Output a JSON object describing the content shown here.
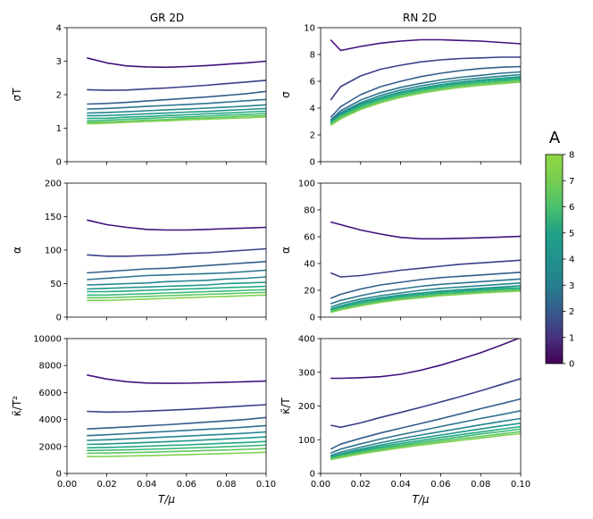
{
  "chart_data": {
    "type": "line",
    "columns": [
      {
        "title": "GR 2D"
      },
      {
        "title": "RN 2D"
      }
    ],
    "shared_x": {
      "label": "T/μ",
      "xlim": [
        0.0,
        0.1
      ],
      "ticks": [
        "0.00",
        "0.02",
        "0.04",
        "0.06",
        "0.08",
        "0.10"
      ]
    },
    "colorbar": {
      "label": "A",
      "colormap": "viridis",
      "range": [
        0,
        8
      ],
      "ticks": [
        "0",
        "1",
        "2",
        "3",
        "4",
        "5",
        "6",
        "7",
        "8"
      ]
    },
    "series_colors": [
      "#43107e",
      "#3b3e88",
      "#345d8c",
      "#2d728e",
      "#25858e",
      "#1f968b",
      "#23a884",
      "#3bb878",
      "#5ec762",
      "#80d150"
    ],
    "panels": [
      {
        "id": "gr-sigmaT",
        "column": 0,
        "row": 0,
        "ylabel": "σT",
        "ylim": [
          0,
          4
        ],
        "yticks": [
          "0",
          "1",
          "2",
          "3",
          "4"
        ],
        "x": [
          0.01,
          0.02,
          0.03,
          0.04,
          0.05,
          0.06,
          0.07,
          0.08,
          0.09,
          0.1
        ],
        "series": [
          {
            "values": [
              3.1,
              2.95,
              2.86,
              2.83,
              2.82,
              2.84,
              2.87,
              2.91,
              2.95,
              3.0
            ]
          },
          {
            "values": [
              2.15,
              2.13,
              2.14,
              2.17,
              2.2,
              2.24,
              2.28,
              2.33,
              2.38,
              2.43
            ]
          },
          {
            "values": [
              1.72,
              1.74,
              1.77,
              1.81,
              1.85,
              1.89,
              1.93,
              1.98,
              2.03,
              2.1
            ]
          },
          {
            "values": [
              1.57,
              1.59,
              1.62,
              1.65,
              1.68,
              1.71,
              1.74,
              1.78,
              1.82,
              1.86
            ]
          },
          {
            "values": [
              1.45,
              1.47,
              1.49,
              1.52,
              1.55,
              1.57,
              1.6,
              1.63,
              1.66,
              1.7
            ]
          },
          {
            "values": [
              1.37,
              1.38,
              1.4,
              1.43,
              1.45,
              1.48,
              1.5,
              1.53,
              1.56,
              1.59
            ]
          },
          {
            "values": [
              1.29,
              1.3,
              1.33,
              1.35,
              1.38,
              1.4,
              1.43,
              1.45,
              1.48,
              1.51
            ]
          },
          {
            "values": [
              1.22,
              1.24,
              1.27,
              1.29,
              1.32,
              1.34,
              1.36,
              1.39,
              1.41,
              1.44
            ]
          },
          {
            "values": [
              1.17,
              1.19,
              1.21,
              1.24,
              1.26,
              1.29,
              1.31,
              1.33,
              1.36,
              1.38
            ]
          },
          {
            "values": [
              1.13,
              1.15,
              1.18,
              1.2,
              1.22,
              1.25,
              1.27,
              1.29,
              1.31,
              1.34
            ]
          }
        ]
      },
      {
        "id": "rn-sigma",
        "column": 1,
        "row": 0,
        "ylabel": "σ",
        "ylim": [
          0,
          10
        ],
        "yticks": [
          "0",
          "2",
          "4",
          "6",
          "8",
          "10"
        ],
        "x": [
          0.005,
          0.01,
          0.02,
          0.03,
          0.04,
          0.05,
          0.06,
          0.07,
          0.08,
          0.09,
          0.1
        ],
        "series": [
          {
            "values": [
              9.1,
              8.3,
              8.6,
              8.85,
              9.0,
              9.1,
              9.1,
              9.05,
              9.0,
              8.9,
              8.8
            ]
          },
          {
            "values": [
              4.6,
              5.6,
              6.4,
              6.9,
              7.2,
              7.45,
              7.6,
              7.7,
              7.75,
              7.8,
              7.8
            ]
          },
          {
            "values": [
              3.3,
              4.1,
              5.0,
              5.6,
              6.0,
              6.35,
              6.6,
              6.8,
              6.95,
              7.05,
              7.1
            ]
          },
          {
            "values": [
              3.1,
              3.8,
              4.6,
              5.15,
              5.55,
              5.85,
              6.1,
              6.3,
              6.45,
              6.6,
              6.7
            ]
          },
          {
            "values": [
              3.0,
              3.65,
              4.4,
              4.95,
              5.35,
              5.65,
              5.9,
              6.1,
              6.25,
              6.38,
              6.5
            ]
          },
          {
            "values": [
              2.95,
              3.55,
              4.3,
              4.8,
              5.2,
              5.5,
              5.75,
              5.95,
              6.1,
              6.22,
              6.35
            ]
          },
          {
            "values": [
              2.9,
              3.45,
              4.2,
              4.7,
              5.1,
              5.4,
              5.65,
              5.85,
              6.0,
              6.12,
              6.25
            ]
          },
          {
            "values": [
              2.85,
              3.4,
              4.1,
              4.6,
              5.0,
              5.3,
              5.55,
              5.75,
              5.9,
              6.02,
              6.15
            ]
          },
          {
            "values": [
              2.8,
              3.3,
              4.0,
              4.5,
              4.9,
              5.2,
              5.45,
              5.65,
              5.8,
              5.92,
              6.05
            ]
          },
          {
            "values": [
              2.7,
              3.2,
              3.9,
              4.4,
              4.8,
              5.1,
              5.35,
              5.55,
              5.7,
              5.82,
              5.95
            ]
          }
        ]
      },
      {
        "id": "gr-alpha",
        "column": 0,
        "row": 1,
        "ylabel": "α",
        "ylim": [
          0,
          200
        ],
        "yticks": [
          "0",
          "50",
          "100",
          "150",
          "200"
        ],
        "x": [
          0.01,
          0.02,
          0.03,
          0.04,
          0.05,
          0.06,
          0.07,
          0.08,
          0.09,
          0.1
        ],
        "series": [
          {
            "values": [
              145,
              138,
              134,
              131,
              130,
              130,
              131,
              132,
              133,
              134
            ]
          },
          {
            "values": [
              93,
              91,
              91,
              92,
              93,
              95,
              96,
              98,
              100,
              102
            ]
          },
          {
            "values": [
              66,
              68,
              70,
              72,
              73,
              75,
              77,
              79,
              81,
              83
            ]
          },
          {
            "values": [
              56,
              58,
              60,
              62,
              63,
              64,
              65,
              66,
              68,
              70
            ]
          },
          {
            "values": [
              48,
              49,
              50,
              51,
              53,
              54,
              55,
              57,
              58,
              60
            ]
          },
          {
            "values": [
              42,
              43,
              44,
              45,
              46,
              47,
              48,
              50,
              51,
              52
            ]
          },
          {
            "values": [
              38,
              38,
              39,
              40,
              41,
              42,
              43,
              44,
              45,
              46
            ]
          },
          {
            "values": [
              33,
              33,
              34,
              35,
              36,
              37,
              38,
              39,
              40,
              41
            ]
          },
          {
            "values": [
              29,
              29,
              30,
              31,
              32,
              33,
              34,
              35,
              36,
              37
            ]
          },
          {
            "values": [
              25,
              25,
              26,
              27,
              28,
              29,
              30,
              31,
              32,
              33
            ]
          }
        ]
      },
      {
        "id": "rn-alpha",
        "column": 1,
        "row": 1,
        "ylabel": "α",
        "ylim": [
          0,
          100
        ],
        "yticks": [
          "0",
          "20",
          "40",
          "60",
          "80",
          "100"
        ],
        "x": [
          0.005,
          0.01,
          0.02,
          0.03,
          0.04,
          0.05,
          0.06,
          0.07,
          0.08,
          0.09,
          0.1
        ],
        "series": [
          {
            "values": [
              71,
              69,
              65,
              62,
              59.5,
              58.5,
              58.5,
              58.8,
              59.2,
              59.7,
              60.3
            ]
          },
          {
            "values": [
              33,
              30,
              31,
              33,
              35,
              36.5,
              38,
              39.5,
              40.5,
              41.5,
              42.5
            ]
          },
          {
            "values": [
              14,
              17,
              21,
              24,
              26,
              28,
              29.5,
              30.5,
              31.5,
              32.5,
              33.5
            ]
          },
          {
            "values": [
              10,
              12.5,
              16,
              19,
              21,
              23,
              24.5,
              25.5,
              26.5,
              27.5,
              28.5
            ]
          },
          {
            "values": [
              7.5,
              10,
              13.5,
              16,
              18,
              20,
              21.5,
              22.5,
              23.5,
              24.5,
              25.5
            ]
          },
          {
            "values": [
              6,
              8.5,
              12,
              14.5,
              16.5,
              18,
              19.5,
              20.5,
              21.5,
              22.5,
              23.5
            ]
          },
          {
            "values": [
              5,
              7.5,
              11,
              13.5,
              15.5,
              17,
              18.5,
              19.5,
              20.5,
              21.5,
              22
            ]
          },
          {
            "values": [
              4.5,
              6.5,
              10,
              12.5,
              14.5,
              16,
              17.5,
              18.5,
              19.5,
              20.5,
              21
            ]
          },
          {
            "values": [
              4,
              6,
              9,
              11.5,
              13.5,
              15,
              16.5,
              17.5,
              18.5,
              19.5,
              20
            ]
          },
          {
            "values": [
              3.5,
              5.5,
              8.5,
              11,
              13,
              14.5,
              16,
              17,
              18,
              18.8,
              19.5
            ]
          }
        ]
      },
      {
        "id": "gr-kappa",
        "column": 0,
        "row": 2,
        "ylabel": "κ̄/T²",
        "ylim": [
          0,
          10000
        ],
        "yticks": [
          "0",
          "2000",
          "4000",
          "6000",
          "8000",
          "10000"
        ],
        "x": [
          0.01,
          0.02,
          0.03,
          0.04,
          0.05,
          0.06,
          0.07,
          0.08,
          0.09,
          0.1
        ],
        "series": [
          {
            "values": [
              7300,
              7000,
              6800,
              6700,
              6680,
              6690,
              6720,
              6760,
              6800,
              6850
            ]
          },
          {
            "values": [
              4600,
              4550,
              4570,
              4620,
              4680,
              4750,
              4830,
              4920,
              5010,
              5100
            ]
          },
          {
            "values": [
              3300,
              3370,
              3450,
              3530,
              3610,
              3700,
              3800,
              3900,
              4000,
              4150
            ]
          },
          {
            "values": [
              2800,
              2870,
              2950,
              3030,
              3110,
              3190,
              3270,
              3350,
              3440,
              3550
            ]
          },
          {
            "values": [
              2450,
              2500,
              2560,
              2630,
              2700,
              2770,
              2840,
              2910,
              2990,
              3080
            ]
          },
          {
            "values": [
              2150,
              2190,
              2240,
              2300,
              2360,
              2420,
              2490,
              2560,
              2630,
              2710
            ]
          },
          {
            "values": [
              1900,
              1930,
              1970,
              2020,
              2070,
              2120,
              2180,
              2240,
              2300,
              2370
            ]
          },
          {
            "values": [
              1700,
              1720,
              1750,
              1790,
              1830,
              1880,
              1930,
              1980,
              2040,
              2100
            ]
          },
          {
            "values": [
              1500,
              1510,
              1540,
              1570,
              1610,
              1650,
              1700,
              1740,
              1790,
              1840
            ]
          },
          {
            "values": [
              1250,
              1260,
              1290,
              1320,
              1360,
              1400,
              1440,
              1480,
              1520,
              1570
            ]
          }
        ]
      },
      {
        "id": "rn-kappa",
        "column": 1,
        "row": 2,
        "ylabel": "κ̄/T",
        "ylim": [
          0,
          400
        ],
        "yticks": [
          "0",
          "100",
          "200",
          "300",
          "400"
        ],
        "x": [
          0.005,
          0.01,
          0.02,
          0.03,
          0.04,
          0.05,
          0.06,
          0.07,
          0.08,
          0.09,
          0.1
        ],
        "series": [
          {
            "values": [
              282,
              282,
              284,
              287,
              294,
              306,
              321,
              339,
              358,
              380,
              403
            ]
          },
          {
            "values": [
              143,
              137,
              150,
              166,
              181,
              196,
              212,
              228,
              245,
              263,
              281
            ]
          },
          {
            "values": [
              72,
              87,
              104,
              120,
              134,
              148,
              162,
              177,
              192,
              206,
              221
            ]
          },
          {
            "values": [
              60,
              72,
              88,
              102,
              115,
              127,
              139,
              151,
              163,
              174,
              186
            ]
          },
          {
            "values": [
              53,
              63,
              78,
              91,
              103,
              114,
              124,
              134,
              144,
              154,
              163
            ]
          },
          {
            "values": [
              49,
              58,
              72,
              84,
              95,
              105,
              114,
              123,
              132,
              141,
              149
            ]
          },
          {
            "values": [
              47,
              55,
              68,
              79,
              89,
              98,
              107,
              115,
              123,
              131,
              139
            ]
          },
          {
            "values": [
              45,
              52,
              64,
              75,
              84,
              93,
              101,
              109,
              117,
              124,
              132
            ]
          },
          {
            "values": [
              43,
              50,
              61,
              71,
              80,
              88,
              96,
              103,
              110,
              117,
              124
            ]
          },
          {
            "values": [
              41,
              47,
              58,
              67,
              76,
              84,
              91,
              98,
              105,
              112,
              118
            ]
          }
        ]
      }
    ]
  }
}
